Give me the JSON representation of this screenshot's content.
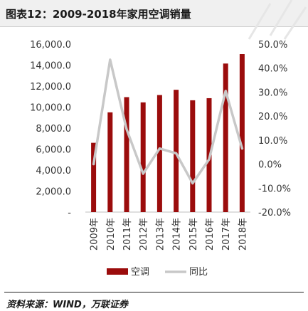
{
  "title": "图表12：2009-2018年家用空调销量",
  "source": "资料来源：WIND，万联证券",
  "colors": {
    "bar": "#9b0c0c",
    "line": "#c8c8c8",
    "axis": "#bfbfbf",
    "text": "#333333"
  },
  "chart_data": {
    "type": "bar",
    "categories": [
      "2009年",
      "2010年",
      "2011年",
      "2012年",
      "2013年",
      "2014年",
      "2015年",
      "2016年",
      "2017年",
      "2018年"
    ],
    "series": [
      {
        "name": "空调",
        "kind": "bar",
        "axis": "left",
        "values": [
          6600,
          9500,
          10950,
          10450,
          11150,
          11650,
          10650,
          10850,
          14150,
          15050
        ]
      },
      {
        "name": "同比",
        "kind": "line",
        "axis": "right",
        "values": [
          0.0,
          43.5,
          14.5,
          -4.0,
          6.5,
          4.5,
          -8.0,
          2.0,
          30.5,
          6.5
        ]
      }
    ],
    "left_axis": {
      "min": 0,
      "max": 16000,
      "ticks": [
        "-",
        "2,000.0",
        "4,000.0",
        "6,000.0",
        "8,000.0",
        "10,000.0",
        "12,000.0",
        "14,000.0",
        "16,000.0"
      ]
    },
    "right_axis": {
      "min": -20,
      "max": 50,
      "ticks": [
        "-20.0%",
        "-10.0%",
        "0.0%",
        "10.0%",
        "20.0%",
        "30.0%",
        "40.0%",
        "50.0%"
      ]
    },
    "legend": "bottom",
    "grid": false
  }
}
